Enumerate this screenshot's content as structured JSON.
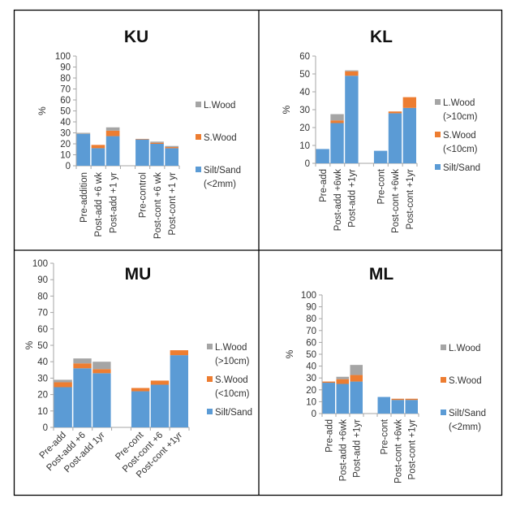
{
  "colors": {
    "silt": "#5b9bd5",
    "swood": "#ed7d31",
    "lwood": "#a5a5a5",
    "axis": "#a6a6a6",
    "border": "#000000"
  },
  "chart_data": [
    {
      "id": "KU",
      "type": "bar",
      "stacked": true,
      "title": "KU",
      "ylabel": "%",
      "xlabel": "",
      "ylim": [
        0,
        100
      ],
      "yticks": [
        0,
        10,
        20,
        30,
        40,
        50,
        60,
        70,
        80,
        90,
        100
      ],
      "label_rotation": "vertical",
      "legend_position": "right",
      "grid": false,
      "categories": [
        "Pre-addition",
        "Post-add +6 wk",
        "Post-add +1 yr",
        "",
        "Pre-control",
        "Post-cont +6 wk",
        "Post-cont +1 yr"
      ],
      "series": [
        {
          "name": "Silt/Sand (<2mm)",
          "key": "silt",
          "values": [
            29,
            16,
            27,
            null,
            24,
            20,
            16
          ]
        },
        {
          "name": "S.Wood",
          "key": "swood",
          "values": [
            0,
            3,
            5,
            null,
            0.5,
            1,
            1
          ]
        },
        {
          "name": "L.Wood",
          "key": "lwood",
          "values": [
            1,
            0,
            3,
            null,
            0,
            1,
            1
          ]
        }
      ],
      "legend": [
        {
          "key": "lwood",
          "lines": [
            "L.Wood"
          ]
        },
        {
          "key": "swood",
          "lines": [
            "S.Wood"
          ]
        },
        {
          "key": "silt",
          "lines": [
            "Silt/Sand",
            "(<2mm)"
          ]
        }
      ]
    },
    {
      "id": "KL",
      "type": "bar",
      "stacked": true,
      "title": "KL",
      "ylabel": "%",
      "xlabel": "",
      "ylim": [
        0,
        60
      ],
      "yticks": [
        0,
        10,
        20,
        30,
        40,
        50,
        60
      ],
      "label_rotation": "vertical",
      "legend_position": "right",
      "grid": false,
      "categories": [
        "Pre-add",
        "Post-add +6wk",
        "Post-add +1yr",
        "",
        "Pre-cont",
        "Post-cont +6wk",
        "Post-cont +1yr"
      ],
      "series": [
        {
          "name": "Silt/Sand",
          "key": "silt",
          "values": [
            8,
            22.5,
            49,
            null,
            7,
            28,
            31
          ]
        },
        {
          "name": "S.Wood (<10cm)",
          "key": "swood",
          "values": [
            0,
            1.5,
            2.5,
            null,
            0,
            1,
            6
          ]
        },
        {
          "name": "L.Wood (>10cm)",
          "key": "lwood",
          "values": [
            0,
            3.5,
            0.5,
            null,
            0,
            0,
            0
          ]
        }
      ],
      "legend": [
        {
          "key": "lwood",
          "lines": [
            "L.Wood",
            "(>10cm)"
          ]
        },
        {
          "key": "swood",
          "lines": [
            "S.Wood",
            "(<10cm)"
          ]
        },
        {
          "key": "silt",
          "lines": [
            "Silt/Sand"
          ]
        }
      ]
    },
    {
      "id": "MU",
      "type": "bar",
      "stacked": true,
      "title": "MU",
      "ylabel": "%",
      "xlabel": "",
      "ylim": [
        0,
        100
      ],
      "yticks": [
        0,
        10,
        20,
        30,
        40,
        50,
        60,
        70,
        80,
        90,
        100
      ],
      "label_rotation": "diagonal",
      "legend_position": "right",
      "grid": false,
      "categories": [
        "Pre-add",
        "Post-add +6",
        "Post-add 1yr",
        "",
        "Pre-cont",
        "Post-cont +6",
        "Post-cont +1yr"
      ],
      "series": [
        {
          "name": "Silt/Sand",
          "key": "silt",
          "values": [
            24.5,
            36,
            33,
            null,
            22,
            26,
            44
          ]
        },
        {
          "name": "S.Wood (<10cm)",
          "key": "swood",
          "values": [
            3,
            3,
            2.5,
            null,
            2,
            2.5,
            3
          ]
        },
        {
          "name": "L.Wood (>10cm)",
          "key": "lwood",
          "values": [
            1.5,
            3,
            4.5,
            null,
            0,
            0,
            0
          ]
        }
      ],
      "legend": [
        {
          "key": "lwood",
          "lines": [
            "L.Wood",
            "(>10cm)"
          ]
        },
        {
          "key": "swood",
          "lines": [
            "S.Wood",
            "(<10cm)"
          ]
        },
        {
          "key": "silt",
          "lines": [
            "Silt/Sand"
          ]
        }
      ]
    },
    {
      "id": "ML",
      "type": "bar",
      "stacked": true,
      "title": "ML",
      "ylabel": "%",
      "xlabel": "",
      "ylim": [
        0,
        100
      ],
      "yticks": [
        0,
        10,
        20,
        30,
        40,
        50,
        60,
        70,
        80,
        90,
        100
      ],
      "label_rotation": "vertical",
      "legend_position": "right",
      "grid": false,
      "categories": [
        "Pre-add",
        "Post-add +6wk",
        "Post-add +1yr",
        "",
        "Pre-cont",
        "Post-cont +6wk",
        "Post-cont +1yr"
      ],
      "series": [
        {
          "name": "Silt/Sand (<2mm)",
          "key": "silt",
          "values": [
            26,
            25,
            27,
            null,
            14,
            11.5,
            11.5
          ]
        },
        {
          "name": "S.Wood",
          "key": "swood",
          "values": [
            1,
            4,
            5.5,
            null,
            0,
            1,
            1
          ]
        },
        {
          "name": "L.Wood",
          "key": "lwood",
          "values": [
            0,
            2,
            8.5,
            null,
            0,
            0,
            0
          ]
        }
      ],
      "legend": [
        {
          "key": "lwood",
          "lines": [
            "L.Wood"
          ]
        },
        {
          "key": "swood",
          "lines": [
            "S.Wood"
          ]
        },
        {
          "key": "silt",
          "lines": [
            "Silt/Sand",
            "(<2mm)"
          ]
        }
      ]
    }
  ]
}
